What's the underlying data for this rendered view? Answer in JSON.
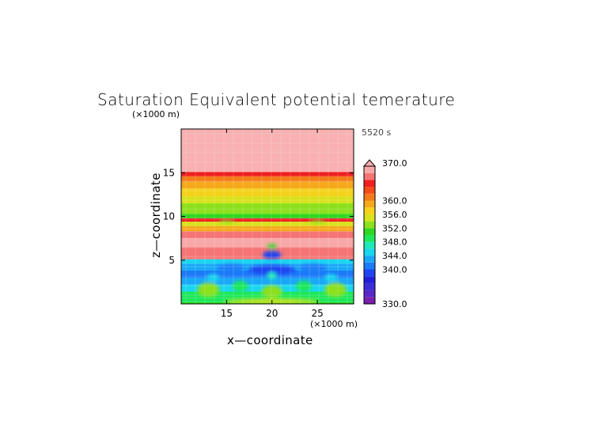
{
  "chart_data": {
    "type": "heatmap",
    "title": "Saturation Equivalent potential temerature",
    "time_label": "5520 s",
    "xlabel": "x—coordinate",
    "ylabel": "z—coordinate",
    "x_unit": "(×1000 m)",
    "y_unit": "(×1000 m)",
    "xlim": [
      10,
      29
    ],
    "ylim": [
      0,
      20
    ],
    "x_ticks": [
      15,
      20,
      25
    ],
    "y_ticks": [
      5,
      10,
      15
    ],
    "colorbar": {
      "range": [
        330,
        370
      ],
      "levels": [
        330,
        332,
        334,
        336,
        338,
        340,
        342,
        344,
        346,
        348,
        350,
        352,
        354,
        356,
        358,
        360,
        362,
        364,
        366,
        368,
        370
      ],
      "labels": [
        "370.0",
        "360.0",
        "356.0",
        "352.0",
        "348.0",
        "344.0",
        "340.0",
        "330.0"
      ],
      "label_values": [
        370,
        360,
        356,
        352,
        348,
        344,
        340,
        330
      ],
      "colors": [
        "#7a1fb0",
        "#5a28c8",
        "#3a2fd8",
        "#1f20d8",
        "#1e45f0",
        "#1a7af8",
        "#19a8f8",
        "#19d6f0",
        "#1ee8b8",
        "#1ce85a",
        "#2fd820",
        "#8ce01c",
        "#d8e21c",
        "#f5d21a",
        "#f5a81a",
        "#f57a1a",
        "#f54a1a",
        "#ee2020",
        "#f57474",
        "#f8a8a8"
      ],
      "over_color": "#f8b0b0"
    },
    "field_profile": [
      {
        "z": 0.2,
        "value": 351
      },
      {
        "z": 0.7,
        "value": 349
      },
      {
        "z": 1.4,
        "value": 348
      },
      {
        "z": 2.2,
        "value": 345
      },
      {
        "z": 3.0,
        "value": 343
      },
      {
        "z": 3.8,
        "value": 341
      },
      {
        "z": 4.6,
        "value": 343
      },
      {
        "z": 5.1,
        "value": 345
      },
      {
        "z": 5.5,
        "value": 366
      },
      {
        "z": 6.5,
        "value": 367
      },
      {
        "z": 7.5,
        "value": 368
      },
      {
        "z": 8.3,
        "value": 366
      },
      {
        "z": 8.9,
        "value": 358
      },
      {
        "z": 9.4,
        "value": 355
      },
      {
        "z": 9.8,
        "value": 364
      },
      {
        "z": 10.3,
        "value": 351
      },
      {
        "z": 10.9,
        "value": 353
      },
      {
        "z": 11.5,
        "value": 352
      },
      {
        "z": 12.3,
        "value": 354
      },
      {
        "z": 13.2,
        "value": 356
      },
      {
        "z": 14.0,
        "value": 358
      },
      {
        "z": 14.6,
        "value": 361
      },
      {
        "z": 15.1,
        "value": 364
      },
      {
        "z": 17.5,
        "value": 370
      },
      {
        "z": 20.0,
        "value": 371
      }
    ]
  }
}
